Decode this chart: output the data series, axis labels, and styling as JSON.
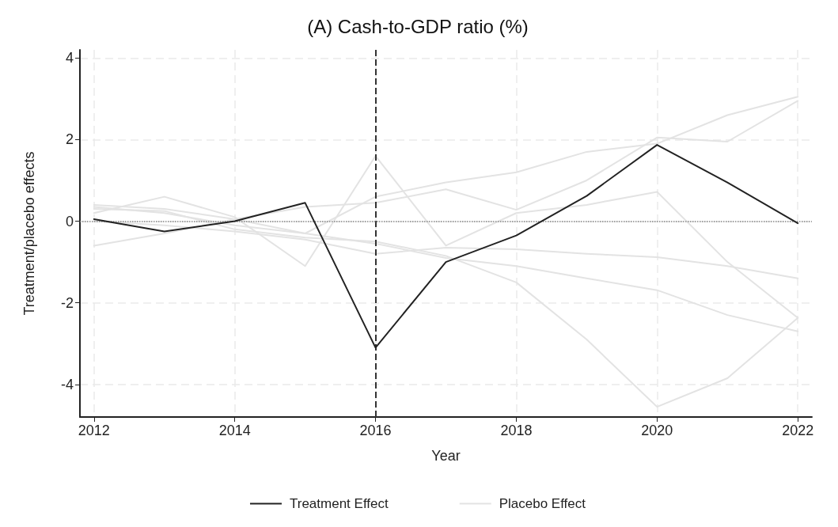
{
  "chart_data": {
    "type": "line",
    "title": "(A) Cash-to-GDP ratio (%)",
    "xlabel": "Year",
    "ylabel": "Treatment/placebo effects",
    "x": [
      2012,
      2013,
      2014,
      2015,
      2016,
      2017,
      2018,
      2019,
      2020,
      2021,
      2022
    ],
    "xlim": [
      2011.8,
      2022.2
    ],
    "xticks": [
      2012,
      2014,
      2016,
      2018,
      2020,
      2022
    ],
    "ylim": [
      -4.8,
      4.2
    ],
    "yticks": [
      -4,
      -2,
      0,
      2,
      4
    ],
    "grid": true,
    "legend": "bottom",
    "line_style": "solid",
    "marker": "none",
    "series": [
      {
        "name": "Placebo Effect",
        "color": "#e3e3e3",
        "values": [
          0.4,
          0.3,
          0.05,
          -0.3,
          0.6,
          0.95,
          1.2,
          1.7,
          1.9,
          2.6,
          3.05
        ]
      },
      {
        "color": "#e3e3e3",
        "values": [
          -0.6,
          -0.3,
          0.05,
          0.35,
          0.45,
          0.78,
          0.28,
          1.0,
          2.05,
          1.95,
          2.95
        ]
      },
      {
        "color": "#e3e3e3",
        "values": [
          0.2,
          0.6,
          0.1,
          -1.1,
          1.6,
          -0.6,
          0.2,
          0.4,
          0.72,
          -1.0,
          -2.37
        ]
      },
      {
        "color": "#e3e3e3",
        "values": [
          0.3,
          0.25,
          -0.2,
          -0.4,
          -0.5,
          -0.85,
          -1.5,
          -2.9,
          -4.55,
          -3.85,
          -2.37
        ]
      },
      {
        "color": "#e3e3e3",
        "values": [
          0.0,
          -0.1,
          -0.25,
          -0.45,
          -0.8,
          -0.65,
          -0.69,
          -0.8,
          -0.88,
          -1.1,
          -1.4
        ]
      },
      {
        "color": "#e3e3e3",
        "values": [
          0.35,
          0.2,
          -0.1,
          -0.3,
          -0.55,
          -0.9,
          -1.1,
          -1.4,
          -1.69,
          -2.3,
          -2.7
        ]
      },
      {
        "name": "Treatment Effect",
        "color": "#222222",
        "values": [
          0.05,
          -0.25,
          0.0,
          0.45,
          -3.1,
          -1.0,
          -0.35,
          0.62,
          1.87,
          0.95,
          -0.05
        ]
      }
    ],
    "ref_lines": [
      {
        "axis": "x",
        "value": 2016,
        "color": "#333333",
        "line_style": "dashed"
      },
      {
        "axis": "y",
        "value": 0,
        "color": "#888888",
        "line_style": "dotted"
      }
    ]
  }
}
